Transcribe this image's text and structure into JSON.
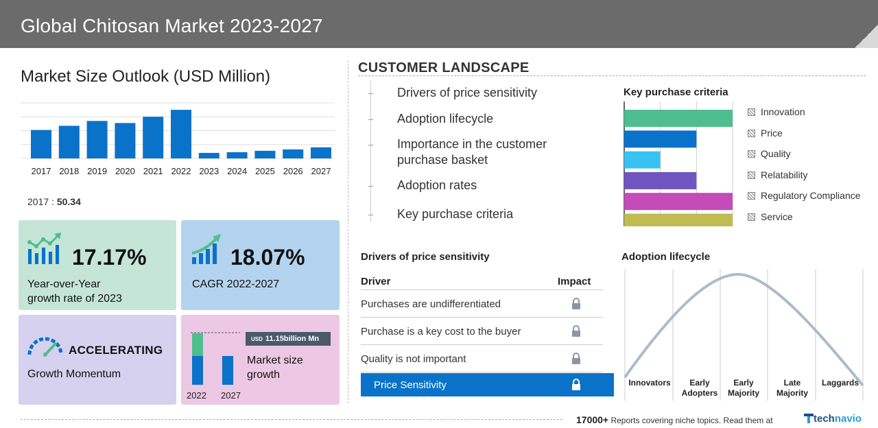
{
  "header": {
    "title": "Global Chitosan Market 2023-2027"
  },
  "market_size": {
    "title": "Market Size Outlook (USD Million)",
    "base_year_label": "2017 :",
    "base_year_value": "50.34"
  },
  "chart_data": {
    "type": "bar",
    "categories": [
      "2017",
      "2018",
      "2019",
      "2020",
      "2021",
      "2022",
      "2023",
      "2024",
      "2025",
      "2026",
      "2027"
    ],
    "values": [
      41,
      47,
      54,
      51,
      60,
      70,
      8,
      9,
      11,
      13,
      16
    ],
    "color": "#0a72c8"
  },
  "cards": {
    "yoy": {
      "value": "17.17%",
      "line1": "Year-over-Year",
      "line2": "growth rate of 2023",
      "icon": "growth-chart-icon",
      "color": "#c5e5d7"
    },
    "cagr": {
      "value": "18.07%",
      "text": "CAGR 2022-2027",
      "icon": "trend-bars-icon",
      "color": "#b4d3ee"
    },
    "momentum": {
      "value": "ACCELERATING",
      "text": "Growth Momentum",
      "icon": "speedometer-icon",
      "color": "#d6d1ee"
    },
    "growth": {
      "tag_prefix": "USD",
      "tag_value": "11.15billion Mn",
      "line1": "Market size",
      "line2": "growth",
      "year_a": "2022",
      "year_b": "2027",
      "color": "#ecc8e4"
    }
  },
  "customer_landscape": {
    "title": "CUSTOMER LANDSCAPE",
    "items": [
      {
        "line1": "Drivers of price sensitivity"
      },
      {
        "line1": "Adoption lifecycle"
      },
      {
        "line1": "Importance in the customer",
        "line2": "purchase basket"
      },
      {
        "line1": "Adoption rates"
      },
      {
        "line1": "Key purchase criteria"
      }
    ]
  },
  "key_purchase_criteria": {
    "title": "Key purchase criteria",
    "criteria": [
      {
        "name": "Innovation",
        "value": 3,
        "color": "#4fbe8e"
      },
      {
        "name": "Price",
        "value": 2,
        "color": "#0a72c8"
      },
      {
        "name": "Quality",
        "value": 1,
        "color": "#36c3f2"
      },
      {
        "name": "Relatability",
        "value": 2,
        "color": "#6f55c0"
      },
      {
        "name": "Regulatory Compliance",
        "value": 3,
        "color": "#c44bb8"
      },
      {
        "name": "Service",
        "value": 3,
        "color": "#c0bc52"
      }
    ],
    "max": 3
  },
  "price_sensitivity": {
    "title": "Drivers of price sensitivity",
    "col_driver": "Driver",
    "col_impact": "Impact",
    "rows": [
      "Purchases are undifferentiated",
      "Purchase is a key cost to the buyer",
      "Quality is not important"
    ],
    "highlight": "Price Sensitivity",
    "lock_icon": "lock-icon"
  },
  "adoption_lifecycle": {
    "title": "Adoption lifecycle",
    "stages": [
      {
        "line1": "",
        "line2": "Innovators"
      },
      {
        "line1": "Early",
        "line2": "Adopters"
      },
      {
        "line1": "Early",
        "line2": "Majority"
      },
      {
        "line1": "Late",
        "line2": "Majority"
      },
      {
        "line1": "",
        "line2": "Laggards"
      }
    ]
  },
  "footer": {
    "count": "17000+",
    "text": "Reports covering niche topics. Read them at",
    "brand_a": "tech",
    "brand_b": "navio"
  }
}
